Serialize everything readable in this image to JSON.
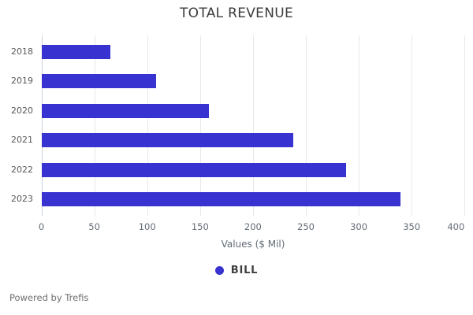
{
  "page": {
    "background": "#ffffff"
  },
  "chart_data": {
    "type": "bar",
    "orientation": "horizontal",
    "title": "TOTAL REVENUE",
    "categories": [
      "2018",
      "2019",
      "2020",
      "2021",
      "2022",
      "2023"
    ],
    "series": [
      {
        "name": "BILL",
        "color": "#3732d0",
        "values": [
          65,
          108,
          158,
          238,
          288,
          339
        ]
      }
    ],
    "xlabel": "Values ($ Mil)",
    "xlim": [
      0,
      400
    ],
    "xticks": [
      0,
      50,
      100,
      150,
      200,
      250,
      300,
      350,
      400
    ],
    "grid": "vertical",
    "zero_line_color": "#c7d3e0",
    "gridline_color": "#e8e8e8",
    "legend_position": "bottom-center"
  },
  "footer": {
    "text": "Powered by Trefis"
  }
}
